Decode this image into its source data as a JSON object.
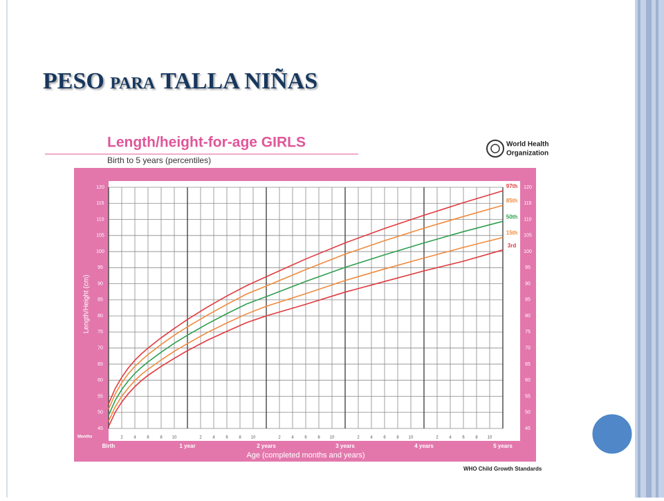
{
  "slide_title": "PESO para TALLA NIÑAS",
  "chart_data": {
    "type": "line",
    "title": "Length/height-for-age GIRLS",
    "subtitle": "Birth to 5 years (percentiles)",
    "organization": [
      "World Health",
      "Organization"
    ],
    "footer": "WHO Child Growth Standards",
    "y_label": "Length/Height (cm)",
    "x_label": "Age (completed months and years)",
    "x_minor_title": "Months",
    "x": [
      0,
      1,
      2,
      3,
      4,
      5,
      6,
      8,
      10,
      12,
      15,
      18,
      21,
      24,
      30,
      36,
      42,
      48,
      54,
      60
    ],
    "series": [
      {
        "name": "97th",
        "color": "#e0393e",
        "values": [
          52.7,
          57.4,
          60.9,
          63.8,
          66.2,
          68.2,
          70.0,
          73.2,
          76.1,
          78.9,
          82.7,
          86.2,
          89.4,
          92.2,
          97.7,
          102.7,
          107.2,
          111.3,
          115.2,
          118.9
        ]
      },
      {
        "name": "85th",
        "color": "#f08a3c",
        "values": [
          51.0,
          55.7,
          59.2,
          62.0,
          64.3,
          66.2,
          68.0,
          71.1,
          74.0,
          76.6,
          80.2,
          83.6,
          86.8,
          89.3,
          94.4,
          99.2,
          103.4,
          107.3,
          110.9,
          114.4
        ]
      },
      {
        "name": "50th",
        "color": "#2e9e4f",
        "values": [
          49.1,
          53.7,
          57.1,
          59.8,
          62.1,
          64.0,
          65.7,
          68.7,
          71.5,
          74.0,
          77.5,
          80.7,
          83.7,
          86.0,
          90.7,
          95.1,
          99.0,
          102.7,
          106.2,
          109.4
        ]
      },
      {
        "name": "15th",
        "color": "#f08a3c",
        "values": [
          47.2,
          51.7,
          55.0,
          57.6,
          59.9,
          61.8,
          63.4,
          66.3,
          69.0,
          71.4,
          74.8,
          77.8,
          80.6,
          83.0,
          86.9,
          91.0,
          94.6,
          98.0,
          101.3,
          104.4
        ]
      },
      {
        "name": "3rd",
        "color": "#e0393e",
        "values": [
          45.6,
          50.0,
          53.2,
          55.8,
          58.0,
          59.9,
          61.5,
          64.3,
          66.8,
          69.2,
          72.4,
          75.2,
          77.9,
          80.0,
          83.6,
          87.4,
          90.7,
          94.0,
          97.0,
          100.5
        ]
      }
    ],
    "xlim": [
      0,
      60
    ],
    "xticks": [
      {
        "value": 0,
        "label": "Birth"
      },
      {
        "value": 12,
        "label": "1 year"
      },
      {
        "value": 24,
        "label": "2 years"
      },
      {
        "value": 36,
        "label": "3 years"
      },
      {
        "value": 48,
        "label": "4 years"
      },
      {
        "value": 60,
        "label": "5 years"
      }
    ],
    "xticks_minor": [
      {
        "value": 2,
        "label": "2"
      },
      {
        "value": 4,
        "label": "4"
      },
      {
        "value": 6,
        "label": "6"
      },
      {
        "value": 8,
        "label": "8"
      },
      {
        "value": 10,
        "label": "10"
      },
      {
        "value": 14,
        "label": "2"
      },
      {
        "value": 16,
        "label": "4"
      },
      {
        "value": 18,
        "label": "6"
      },
      {
        "value": 20,
        "label": "8"
      },
      {
        "value": 22,
        "label": "10"
      },
      {
        "value": 26,
        "label": "2"
      },
      {
        "value": 28,
        "label": "4"
      },
      {
        "value": 30,
        "label": "6"
      },
      {
        "value": 32,
        "label": "8"
      },
      {
        "value": 34,
        "label": "10"
      },
      {
        "value": 38,
        "label": "2"
      },
      {
        "value": 40,
        "label": "4"
      },
      {
        "value": 42,
        "label": "6"
      },
      {
        "value": 44,
        "label": "8"
      },
      {
        "value": 46,
        "label": "10"
      },
      {
        "value": 50,
        "label": "2"
      },
      {
        "value": 52,
        "label": "4"
      },
      {
        "value": 54,
        "label": "6"
      },
      {
        "value": 56,
        "label": "8"
      },
      {
        "value": 58,
        "label": "10"
      }
    ],
    "ylim": [
      45,
      120
    ],
    "yticks": [
      45,
      50,
      55,
      60,
      65,
      70,
      75,
      80,
      85,
      90,
      95,
      100,
      105,
      110,
      115,
      120
    ],
    "grid": true
  }
}
